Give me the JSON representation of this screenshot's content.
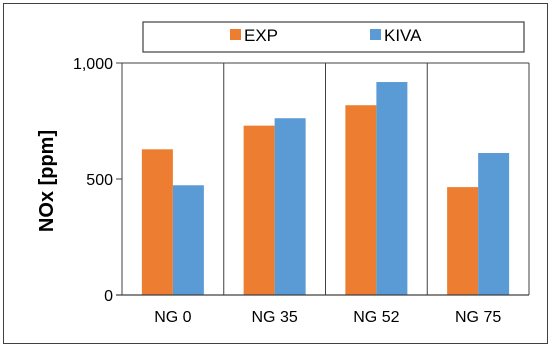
{
  "chart_data": {
    "type": "bar",
    "categories": [
      "NG 0",
      "NG 35",
      "NG 52",
      "NG 75"
    ],
    "series": [
      {
        "name": "EXP",
        "color": "#ED7D31",
        "values": [
          628,
          730,
          818,
          465
        ]
      },
      {
        "name": "KIVA",
        "color": "#5B9BD5",
        "values": [
          473,
          762,
          918,
          612
        ]
      }
    ],
    "xlabel": "",
    "ylabel": "NOx [ppm]",
    "ylim": [
      0,
      1000
    ],
    "yticks": [
      0,
      500,
      1000
    ],
    "ytick_labels": [
      "0",
      "500",
      "1,000"
    ],
    "grid": "vertical category separators",
    "legend_position": "top"
  }
}
